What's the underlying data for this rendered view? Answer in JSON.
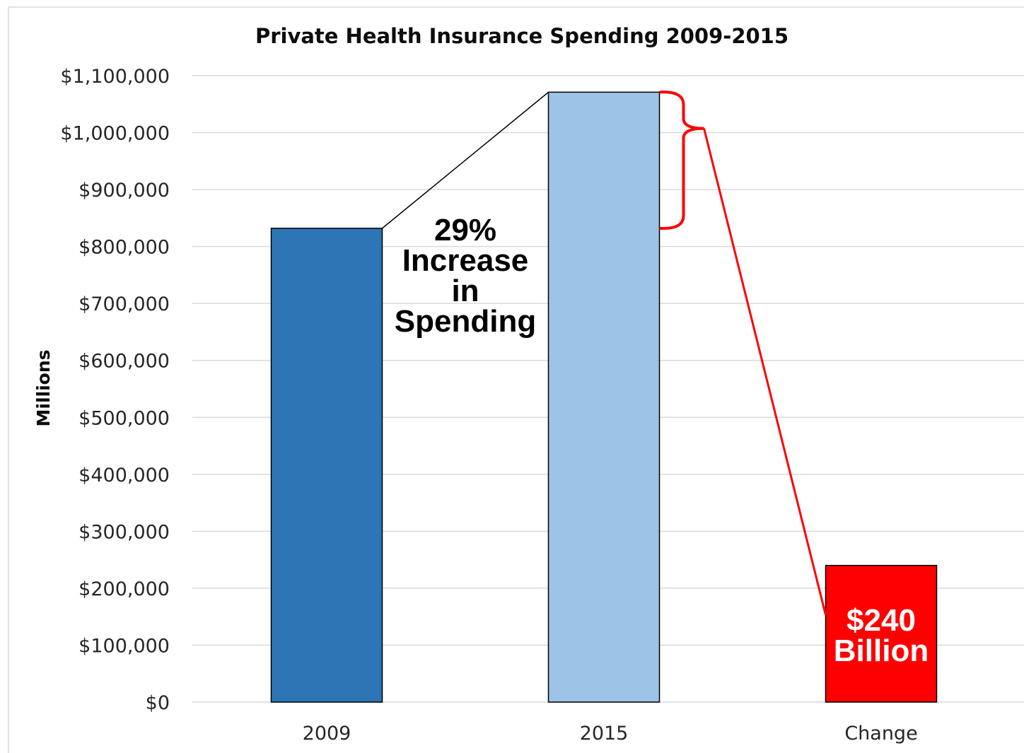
{
  "chart_data": {
    "type": "bar",
    "title": "Private Health Insurance Spending 2009-2015",
    "xlabel": "",
    "ylabel": "Millions",
    "categories": [
      "2009",
      "2015",
      "Change"
    ],
    "values": [
      832000,
      1071000,
      240000
    ],
    "colors": [
      "#2e75b6",
      "#9dc3e6",
      "#ff0000"
    ],
    "ylim": [
      0,
      1100000
    ],
    "ytick_step": 100000,
    "yticks": [
      "$0",
      "$100,000",
      "$200,000",
      "$300,000",
      "$400,000",
      "$500,000",
      "$600,000",
      "$700,000",
      "$800,000",
      "$900,000",
      "$1,000,000",
      "$1,100,000"
    ],
    "grid": true,
    "legend": "none",
    "annotations": [
      {
        "lines": [
          "29%",
          "Increase",
          "in",
          "Spending"
        ],
        "color": "#000000"
      },
      {
        "lines": [
          "$240",
          "Billion"
        ],
        "color": "#ffffff"
      }
    ],
    "accent_color": "#ff0000"
  }
}
